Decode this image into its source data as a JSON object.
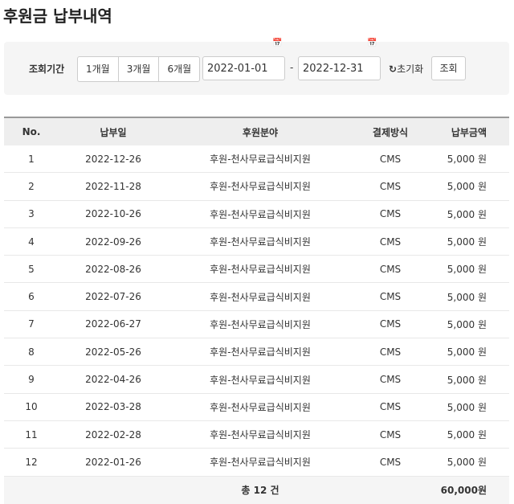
{
  "page_title": "후원금 납부내역",
  "filter": {
    "label": "조회기간",
    "periods": [
      "1개월",
      "3개월",
      "6개월"
    ],
    "start_date": "2022-01-01",
    "end_date": "2022-12-31",
    "separator": "-",
    "reset_label": "초기화",
    "search_label": "조회",
    "icons": {
      "calendar": "calendar-icon",
      "reset": "refresh-icon"
    }
  },
  "table": {
    "headers": [
      "No.",
      "납부일",
      "후원분야",
      "결제방식",
      "납부금액"
    ],
    "rows": [
      [
        "1",
        "2022-12-26",
        "후원-천사무료급식비지원",
        "CMS",
        "5,000 원"
      ],
      [
        "2",
        "2022-11-28",
        "후원-천사무료급식비지원",
        "CMS",
        "5,000 원"
      ],
      [
        "3",
        "2022-10-26",
        "후원-천사무료급식비지원",
        "CMS",
        "5,000 원"
      ],
      [
        "4",
        "2022-09-26",
        "후원-천사무료급식비지원",
        "CMS",
        "5,000 원"
      ],
      [
        "5",
        "2022-08-26",
        "후원-천사무료급식비지원",
        "CMS",
        "5,000 원"
      ],
      [
        "6",
        "2022-07-26",
        "후원-천사무료급식비지원",
        "CMS",
        "5,000 원"
      ],
      [
        "7",
        "2022-06-27",
        "후원-천사무료급식비지원",
        "CMS",
        "5,000 원"
      ],
      [
        "8",
        "2022-05-26",
        "후원-천사무료급식비지원",
        "CMS",
        "5,000 원"
      ],
      [
        "9",
        "2022-04-26",
        "후원-천사무료급식비지원",
        "CMS",
        "5,000 원"
      ],
      [
        "10",
        "2022-03-28",
        "후원-천사무료급식비지원",
        "CMS",
        "5,000 원"
      ],
      [
        "11",
        "2022-02-28",
        "후원-천사무료급식비지원",
        "CMS",
        "5,000 원"
      ],
      [
        "12",
        "2022-01-26",
        "후원-천사무료급식비지원",
        "CMS",
        "5,000 원"
      ]
    ],
    "footer": {
      "count": "총 12 건",
      "total": "60,000원"
    }
  }
}
